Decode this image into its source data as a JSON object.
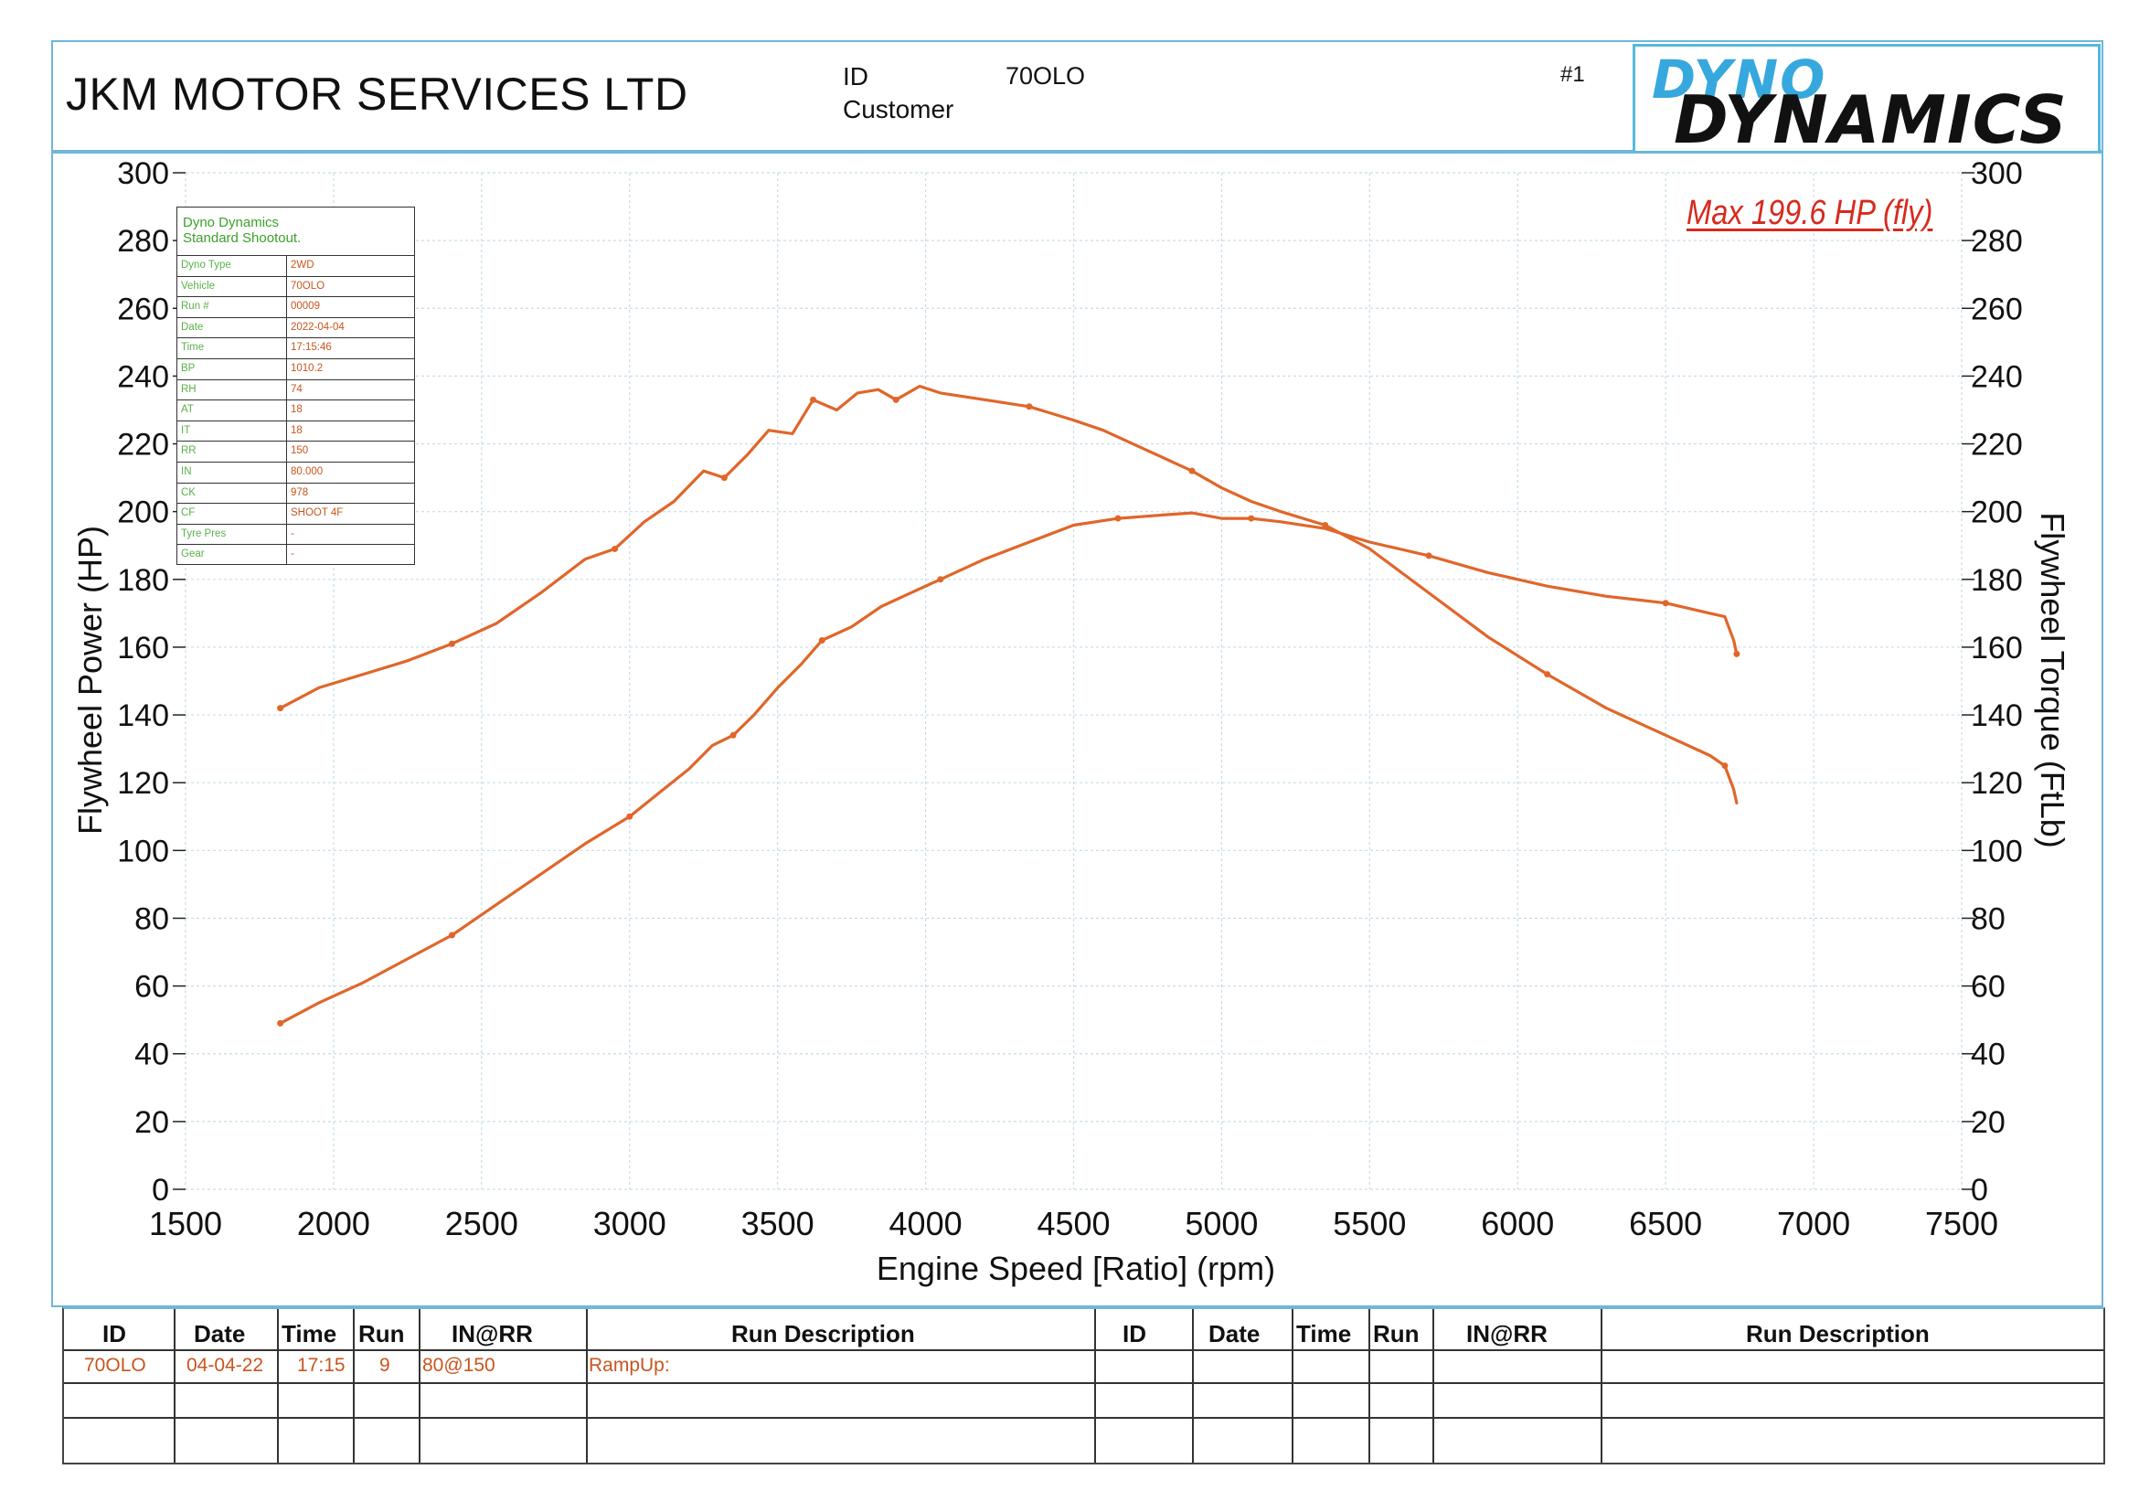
{
  "header": {
    "company": "JKM MOTOR SERVICES LTD",
    "id_label": "ID",
    "id_value": "70OLO",
    "customer_label": "Customer",
    "run_number": "#1",
    "logo_top": "DYNO",
    "logo_bottom": "DYNAMICS"
  },
  "max_label": "Max 199.6 HP (fly)",
  "info_table": {
    "title_line1": "Dyno Dynamics",
    "title_line2": "Standard Shootout.",
    "rows": [
      {
        "k": "Dyno Type",
        "v": "2WD"
      },
      {
        "k": "Vehicle",
        "v": "70OLO"
      },
      {
        "k": "Run #",
        "v": "00009"
      },
      {
        "k": "Date",
        "v": "2022-04-04"
      },
      {
        "k": "Time",
        "v": "17:15:46"
      },
      {
        "k": "BP",
        "v": "1010.2"
      },
      {
        "k": "RH",
        "v": "74"
      },
      {
        "k": "AT",
        "v": "18"
      },
      {
        "k": "IT",
        "v": "18"
      },
      {
        "k": "RR",
        "v": "150"
      },
      {
        "k": "IN",
        "v": "80.000"
      },
      {
        "k": "CK",
        "v": "978"
      },
      {
        "k": "CF",
        "v": "SHOOT 4F"
      },
      {
        "k": "Tyre Pres",
        "v": "-"
      },
      {
        "k": "Gear",
        "v": "-"
      }
    ]
  },
  "run_table": {
    "headers": [
      "ID",
      "Date",
      "Time",
      "Run",
      "IN@RR",
      "Run Description",
      "ID",
      "Date",
      "Time",
      "Run",
      "IN@RR",
      "Run Description"
    ],
    "row1": [
      "70OLO",
      "04-04-22",
      "17:15",
      "9",
      "80@150",
      "RampUp:"
    ]
  },
  "colors": {
    "curve": "#e0662a",
    "grid": "#c8dde8",
    "frame": "#6fb6d8",
    "max_label": "#d62a1e"
  },
  "chart_data": {
    "type": "line",
    "xlabel": "Engine Speed [Ratio] (rpm)",
    "ylabel_left": "Flywheel Power (HP)",
    "ylabel_right": "Flywheel Torque (FtLb)",
    "xlim": [
      1500,
      7500
    ],
    "ylim": [
      0,
      300
    ],
    "xticks": [
      1500,
      2000,
      2500,
      3000,
      3500,
      4000,
      4500,
      5000,
      5500,
      6000,
      6500,
      7000,
      7500
    ],
    "yticks": [
      0,
      20,
      40,
      60,
      80,
      100,
      120,
      140,
      160,
      180,
      200,
      220,
      240,
      260,
      280,
      300
    ],
    "grid": true,
    "series": [
      {
        "x": [
          1820,
          1950,
          2100,
          2250,
          2400,
          2550,
          2700,
          2850,
          2950,
          3050,
          3150,
          3250,
          3320,
          3400,
          3470,
          3550,
          3620,
          3700,
          3770,
          3840,
          3900,
          3980,
          4050,
          4200,
          4350,
          4500,
          4600,
          4750,
          4900,
          5000,
          5100,
          5200,
          5350,
          5500,
          5700,
          5900,
          6100,
          6300,
          6500,
          6650,
          6700,
          6730,
          6740
        ],
        "y": [
          142,
          148,
          152,
          156,
          161,
          167,
          176,
          186,
          189,
          197,
          203,
          212,
          210,
          217,
          224,
          223,
          233,
          230,
          235,
          236,
          233,
          237,
          235,
          233,
          231,
          227,
          224,
          218,
          212,
          207,
          203,
          200,
          196,
          189,
          176,
          163,
          152,
          142,
          134,
          128,
          125,
          118,
          114
        ]
      },
      {
        "x": [
          1820,
          1950,
          2100,
          2250,
          2400,
          2550,
          2700,
          2850,
          3000,
          3100,
          3200,
          3280,
          3350,
          3420,
          3500,
          3580,
          3650,
          3750,
          3850,
          3950,
          4050,
          4200,
          4350,
          4500,
          4650,
          4800,
          4900,
          5000,
          5100,
          5200,
          5350,
          5500,
          5700,
          5900,
          6100,
          6300,
          6500,
          6650,
          6700,
          6730,
          6740
        ],
        "y": [
          49,
          55,
          61,
          68,
          75,
          84,
          93,
          102,
          110,
          117,
          124,
          131,
          134,
          140,
          148,
          155,
          162,
          166,
          172,
          176,
          180,
          186,
          191,
          196,
          198,
          199,
          199.6,
          198,
          198,
          197,
          195,
          191,
          187,
          182,
          178,
          175,
          173,
          170,
          169,
          162,
          158
        ]
      }
    ]
  }
}
